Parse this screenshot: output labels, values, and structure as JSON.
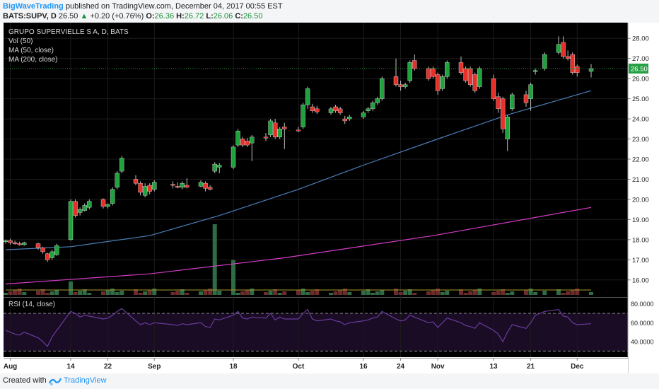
{
  "header": {
    "author": "BigWaveTrading",
    "published": "published on TradingView.com, December 04, 2017 00:55 EST",
    "symbol": "BATS:SUPV, D",
    "last": "26.50",
    "change": "+0.20 (+0.76%)",
    "o_label": "O:",
    "o": "26.36",
    "h_label": "H:",
    "h": "26.72",
    "l_label": "L:",
    "l": "26.06",
    "c_label": "C:",
    "c": "26.50"
  },
  "footer": {
    "created_with": "Created with",
    "brand": "TradingView"
  },
  "colors": {
    "background": "#000000",
    "up": "#1ea33c",
    "down": "#e8302a",
    "ma50": "#4b7fb8",
    "ma200": "#d63cc8",
    "rsi": "#6a3b9e",
    "vol_up": "#2f6b44",
    "vol_down": "#6e2b2b"
  },
  "chart_data": {
    "type": "candlestick",
    "legend": [
      "GRUPO SUPERVIELLE S A, D, BATS",
      "Vol (50)",
      "MA (50, close)",
      "MA (200, close)"
    ],
    "ylim": [
      15.5,
      28.5
    ],
    "y_ticks": [
      "28.00",
      "27.00",
      "26.00",
      "25.00",
      "24.00",
      "23.00",
      "22.00",
      "21.00",
      "20.00",
      "19.00",
      "18.00",
      "17.00",
      "16.00"
    ],
    "last_price_label": "26.50",
    "x_tick_labels": [
      {
        "label": "Aug",
        "date": "2017-08-01"
      },
      {
        "label": "14",
        "date": "2017-08-14"
      },
      {
        "label": "22",
        "date": "2017-08-22"
      },
      {
        "label": "Sep",
        "date": "2017-09-01"
      },
      {
        "label": "18",
        "date": "2017-09-18"
      },
      {
        "label": "Oct",
        "date": "2017-10-02"
      },
      {
        "label": "16",
        "date": "2017-10-16"
      },
      {
        "label": "24",
        "date": "2017-10-24"
      },
      {
        "label": "Nov",
        "date": "2017-11-01"
      },
      {
        "label": "13",
        "date": "2017-11-13"
      },
      {
        "label": "21",
        "date": "2017-11-21"
      },
      {
        "label": "Dec",
        "date": "2017-12-01"
      }
    ],
    "candles": [
      {
        "date": "2017-07-31",
        "o": 17.9,
        "h": 18.0,
        "l": 17.8,
        "c": 17.95
      },
      {
        "date": "2017-08-01",
        "o": 17.95,
        "h": 18.05,
        "l": 17.75,
        "c": 17.85
      },
      {
        "date": "2017-08-02",
        "o": 17.85,
        "h": 17.95,
        "l": 17.75,
        "c": 17.8
      },
      {
        "date": "2017-08-03",
        "o": 17.8,
        "h": 17.9,
        "l": 17.7,
        "c": 17.75
      },
      {
        "date": "2017-08-04",
        "o": 17.75,
        "h": 17.9,
        "l": 17.7,
        "c": 17.85
      },
      {
        "date": "2017-08-07",
        "o": 17.8,
        "h": 17.85,
        "l": 17.5,
        "c": 17.6
      },
      {
        "date": "2017-08-08",
        "o": 17.6,
        "h": 17.65,
        "l": 17.3,
        "c": 17.4
      },
      {
        "date": "2017-08-09",
        "o": 17.3,
        "h": 17.35,
        "l": 16.9,
        "c": 17.0
      },
      {
        "date": "2017-08-10",
        "o": 17.1,
        "h": 17.5,
        "l": 17.0,
        "c": 17.4
      },
      {
        "date": "2017-08-11",
        "o": 17.25,
        "h": 17.8,
        "l": 17.2,
        "c": 17.7
      },
      {
        "date": "2017-08-14",
        "o": 18.0,
        "h": 20.0,
        "l": 17.95,
        "c": 19.9
      },
      {
        "date": "2017-08-15",
        "o": 19.9,
        "h": 20.0,
        "l": 19.1,
        "c": 19.2
      },
      {
        "date": "2017-08-16",
        "o": 19.35,
        "h": 19.6,
        "l": 19.2,
        "c": 19.5
      },
      {
        "date": "2017-08-17",
        "o": 19.45,
        "h": 19.8,
        "l": 19.4,
        "c": 19.7
      },
      {
        "date": "2017-08-18",
        "o": 19.6,
        "h": 20.0,
        "l": 19.5,
        "c": 19.9
      },
      {
        "date": "2017-08-21",
        "o": 20.0,
        "h": 20.05,
        "l": 19.55,
        "c": 19.65
      },
      {
        "date": "2017-08-22",
        "o": 19.65,
        "h": 19.8,
        "l": 19.55,
        "c": 19.75
      },
      {
        "date": "2017-08-23",
        "o": 19.8,
        "h": 20.6,
        "l": 19.7,
        "c": 20.5
      },
      {
        "date": "2017-08-24",
        "o": 20.6,
        "h": 21.4,
        "l": 20.5,
        "c": 21.3
      },
      {
        "date": "2017-08-25",
        "o": 21.4,
        "h": 22.15,
        "l": 21.3,
        "c": 22.05
      },
      {
        "date": "2017-08-28",
        "o": 21.0,
        "h": 21.2,
        "l": 20.7,
        "c": 20.8
      },
      {
        "date": "2017-08-29",
        "o": 20.8,
        "h": 20.9,
        "l": 20.2,
        "c": 20.35
      },
      {
        "date": "2017-08-30",
        "o": 20.2,
        "h": 20.8,
        "l": 20.1,
        "c": 20.65
      },
      {
        "date": "2017-08-31",
        "o": 20.7,
        "h": 20.8,
        "l": 20.25,
        "c": 20.4
      },
      {
        "date": "2017-09-01",
        "o": 20.5,
        "h": 20.95,
        "l": 20.4,
        "c": 20.85
      },
      {
        "date": "2017-09-05",
        "o": 20.75,
        "h": 20.9,
        "l": 20.55,
        "c": 20.7
      },
      {
        "date": "2017-09-06",
        "o": 20.65,
        "h": 20.85,
        "l": 20.55,
        "c": 20.6
      },
      {
        "date": "2017-09-07",
        "o": 20.6,
        "h": 20.9,
        "l": 20.5,
        "c": 20.8
      },
      {
        "date": "2017-09-08",
        "o": 20.7,
        "h": 21.05,
        "l": 20.55,
        "c": 20.6
      },
      {
        "date": "2017-09-11",
        "o": 20.65,
        "h": 20.95,
        "l": 20.6,
        "c": 20.85
      },
      {
        "date": "2017-09-12",
        "o": 20.8,
        "h": 20.9,
        "l": 20.4,
        "c": 20.55
      },
      {
        "date": "2017-09-13",
        "o": 20.6,
        "h": 20.7,
        "l": 20.45,
        "c": 20.5
      },
      {
        "date": "2017-09-14",
        "o": 21.4,
        "h": 21.85,
        "l": 21.3,
        "c": 21.75
      },
      {
        "date": "2017-09-15",
        "o": 21.6,
        "h": 21.8,
        "l": 21.3,
        "c": 21.7
      },
      {
        "date": "2017-09-18",
        "o": 21.6,
        "h": 22.7,
        "l": 21.5,
        "c": 22.6
      },
      {
        "date": "2017-09-19",
        "o": 22.7,
        "h": 23.5,
        "l": 22.6,
        "c": 23.4
      },
      {
        "date": "2017-09-20",
        "o": 23.0,
        "h": 23.1,
        "l": 22.6,
        "c": 22.7
      },
      {
        "date": "2017-09-21",
        "o": 22.9,
        "h": 23.05,
        "l": 22.6,
        "c": 22.7
      },
      {
        "date": "2017-09-22",
        "o": 22.8,
        "h": 23.2,
        "l": 21.9,
        "c": 23.1
      },
      {
        "date": "2017-09-25",
        "o": 23.1,
        "h": 23.3,
        "l": 22.9,
        "c": 23.05
      },
      {
        "date": "2017-09-26",
        "o": 23.2,
        "h": 24.0,
        "l": 23.1,
        "c": 23.9
      },
      {
        "date": "2017-09-27",
        "o": 23.8,
        "h": 24.0,
        "l": 23.0,
        "c": 23.1
      },
      {
        "date": "2017-09-28",
        "o": 23.1,
        "h": 23.6,
        "l": 23.0,
        "c": 23.5
      },
      {
        "date": "2017-09-29",
        "o": 23.6,
        "h": 23.8,
        "l": 22.5,
        "c": 23.5
      },
      {
        "date": "2017-10-02",
        "o": 23.45,
        "h": 23.6,
        "l": 23.35,
        "c": 23.4
      },
      {
        "date": "2017-10-03",
        "o": 23.6,
        "h": 24.8,
        "l": 23.5,
        "c": 24.7
      },
      {
        "date": "2017-10-04",
        "o": 24.7,
        "h": 25.6,
        "l": 24.5,
        "c": 25.5
      },
      {
        "date": "2017-10-05",
        "o": 24.6,
        "h": 24.75,
        "l": 24.3,
        "c": 24.4
      },
      {
        "date": "2017-10-06",
        "o": 24.5,
        "h": 24.65,
        "l": 24.25,
        "c": 24.35
      },
      {
        "date": "2017-10-09",
        "o": 24.3,
        "h": 24.6,
        "l": 24.2,
        "c": 24.5
      },
      {
        "date": "2017-10-10",
        "o": 24.6,
        "h": 24.7,
        "l": 24.3,
        "c": 24.4
      },
      {
        "date": "2017-10-11",
        "o": 24.5,
        "h": 24.6,
        "l": 24.2,
        "c": 24.3
      },
      {
        "date": "2017-10-12",
        "o": 24.0,
        "h": 24.15,
        "l": 23.75,
        "c": 23.9
      },
      {
        "date": "2017-10-13",
        "o": 24.0,
        "h": 24.2,
        "l": 23.9,
        "c": 24.1
      },
      {
        "date": "2017-10-16",
        "o": 24.1,
        "h": 24.4,
        "l": 24.0,
        "c": 24.3
      },
      {
        "date": "2017-10-17",
        "o": 24.4,
        "h": 24.6,
        "l": 24.3,
        "c": 24.5
      },
      {
        "date": "2017-10-18",
        "o": 24.5,
        "h": 24.9,
        "l": 24.4,
        "c": 24.8
      },
      {
        "date": "2017-10-19",
        "o": 24.8,
        "h": 25.1,
        "l": 24.7,
        "c": 25.0
      },
      {
        "date": "2017-10-20",
        "o": 25.0,
        "h": 26.1,
        "l": 24.9,
        "c": 26.0
      },
      {
        "date": "2017-10-23",
        "o": 26.1,
        "h": 27.0,
        "l": 25.6,
        "c": 25.7
      },
      {
        "date": "2017-10-24",
        "o": 25.7,
        "h": 25.9,
        "l": 25.4,
        "c": 25.6
      },
      {
        "date": "2017-10-25",
        "o": 25.6,
        "h": 25.8,
        "l": 25.5,
        "c": 25.7
      },
      {
        "date": "2017-10-26",
        "o": 25.9,
        "h": 26.9,
        "l": 25.8,
        "c": 26.8
      },
      {
        "date": "2017-10-27",
        "o": 26.9,
        "h": 27.2,
        "l": 26.4,
        "c": 26.5
      },
      {
        "date": "2017-10-30",
        "o": 26.5,
        "h": 26.6,
        "l": 25.9,
        "c": 26.0
      },
      {
        "date": "2017-10-31",
        "o": 26.5,
        "h": 26.6,
        "l": 26.0,
        "c": 26.1
      },
      {
        "date": "2017-11-01",
        "o": 26.2,
        "h": 26.3,
        "l": 25.2,
        "c": 25.4
      },
      {
        "date": "2017-11-02",
        "o": 25.5,
        "h": 26.2,
        "l": 25.4,
        "c": 26.1
      },
      {
        "date": "2017-11-03",
        "o": 26.1,
        "h": 26.9,
        "l": 26.0,
        "c": 26.8
      },
      {
        "date": "2017-11-06",
        "o": 26.8,
        "h": 27.1,
        "l": 26.2,
        "c": 26.3
      },
      {
        "date": "2017-11-07",
        "o": 26.5,
        "h": 26.6,
        "l": 25.8,
        "c": 25.9
      },
      {
        "date": "2017-11-08",
        "o": 26.5,
        "h": 26.6,
        "l": 25.6,
        "c": 25.7
      },
      {
        "date": "2017-11-09",
        "o": 26.2,
        "h": 26.3,
        "l": 25.3,
        "c": 25.4
      },
      {
        "date": "2017-11-10",
        "o": 25.6,
        "h": 26.6,
        "l": 25.5,
        "c": 26.5
      },
      {
        "date": "2017-11-13",
        "o": 26.0,
        "h": 26.2,
        "l": 24.9,
        "c": 25.0
      },
      {
        "date": "2017-11-14",
        "o": 25.1,
        "h": 25.3,
        "l": 24.3,
        "c": 24.5
      },
      {
        "date": "2017-11-15",
        "o": 25.0,
        "h": 25.1,
        "l": 23.3,
        "c": 23.5
      },
      {
        "date": "2017-11-16",
        "o": 23.0,
        "h": 24.2,
        "l": 22.4,
        "c": 24.1
      },
      {
        "date": "2017-11-17",
        "o": 24.5,
        "h": 25.3,
        "l": 24.4,
        "c": 25.2
      },
      {
        "date": "2017-11-20",
        "o": 25.2,
        "h": 25.4,
        "l": 24.6,
        "c": 24.8
      },
      {
        "date": "2017-11-21",
        "o": 25.0,
        "h": 25.8,
        "l": 24.4,
        "c": 25.7
      },
      {
        "date": "2017-11-22",
        "o": 26.4,
        "h": 26.5,
        "l": 26.2,
        "c": 26.4
      },
      {
        "date": "2017-11-24",
        "o": 26.5,
        "h": 27.3,
        "l": 26.4,
        "c": 27.2
      },
      {
        "date": "2017-11-27",
        "o": 27.3,
        "h": 28.1,
        "l": 27.2,
        "c": 27.7
      },
      {
        "date": "2017-11-28",
        "o": 27.8,
        "h": 28.1,
        "l": 27.0,
        "c": 27.1
      },
      {
        "date": "2017-11-29",
        "o": 27.1,
        "h": 27.4,
        "l": 26.9,
        "c": 27.0
      },
      {
        "date": "2017-11-30",
        "o": 27.2,
        "h": 27.3,
        "l": 26.2,
        "c": 26.3
      },
      {
        "date": "2017-12-01",
        "o": 26.6,
        "h": 26.7,
        "l": 26.1,
        "c": 26.3
      },
      {
        "date": "2017-12-04",
        "o": 26.36,
        "h": 26.72,
        "l": 26.06,
        "c": 26.5
      }
    ],
    "ma50": [
      {
        "date": "2017-07-31",
        "v": 17.5
      },
      {
        "date": "2017-08-14",
        "v": 17.65
      },
      {
        "date": "2017-08-31",
        "v": 18.2
      },
      {
        "date": "2017-09-15",
        "v": 19.2
      },
      {
        "date": "2017-10-02",
        "v": 20.5
      },
      {
        "date": "2017-10-16",
        "v": 21.7
      },
      {
        "date": "2017-11-01",
        "v": 23.0
      },
      {
        "date": "2017-11-16",
        "v": 24.2
      },
      {
        "date": "2017-12-04",
        "v": 25.4
      }
    ],
    "ma200": [
      {
        "date": "2017-07-31",
        "v": 15.8
      },
      {
        "date": "2017-08-31",
        "v": 16.3
      },
      {
        "date": "2017-09-29",
        "v": 17.1
      },
      {
        "date": "2017-10-31",
        "v": 18.2
      },
      {
        "date": "2017-12-04",
        "v": 19.6
      }
    ],
    "volume_pane": {
      "label": "Vol (50)",
      "volume_spikes": [
        {
          "date": "2017-09-14",
          "relative": 1.0
        },
        {
          "date": "2017-09-18",
          "relative": 0.45
        },
        {
          "date": "2017-08-14",
          "relative": 0.12
        }
      ]
    },
    "rsi": {
      "label": "RSI (14, close)",
      "upper": 70,
      "lower": 30,
      "y_ticks": [
        "80.0000",
        "60.0000",
        "40.0000"
      ],
      "ylim": [
        25,
        85
      ],
      "values": [
        52,
        50,
        48,
        47,
        50,
        44,
        40,
        35,
        45,
        52,
        72,
        70,
        66,
        68,
        67,
        64,
        65,
        68,
        72,
        75,
        62,
        58,
        60,
        58,
        60,
        58,
        57,
        59,
        58,
        60,
        56,
        55,
        64,
        63,
        68,
        72,
        65,
        64,
        66,
        65,
        70,
        63,
        66,
        64,
        64,
        70,
        74,
        64,
        62,
        64,
        62,
        61,
        58,
        60,
        62,
        63,
        65,
        66,
        72,
        64,
        62,
        63,
        68,
        66,
        60,
        61,
        55,
        60,
        65,
        60,
        57,
        56,
        54,
        60,
        52,
        48,
        40,
        50,
        58,
        54,
        60,
        68,
        72,
        74,
        67,
        66,
        60,
        58,
        59
      ]
    }
  }
}
